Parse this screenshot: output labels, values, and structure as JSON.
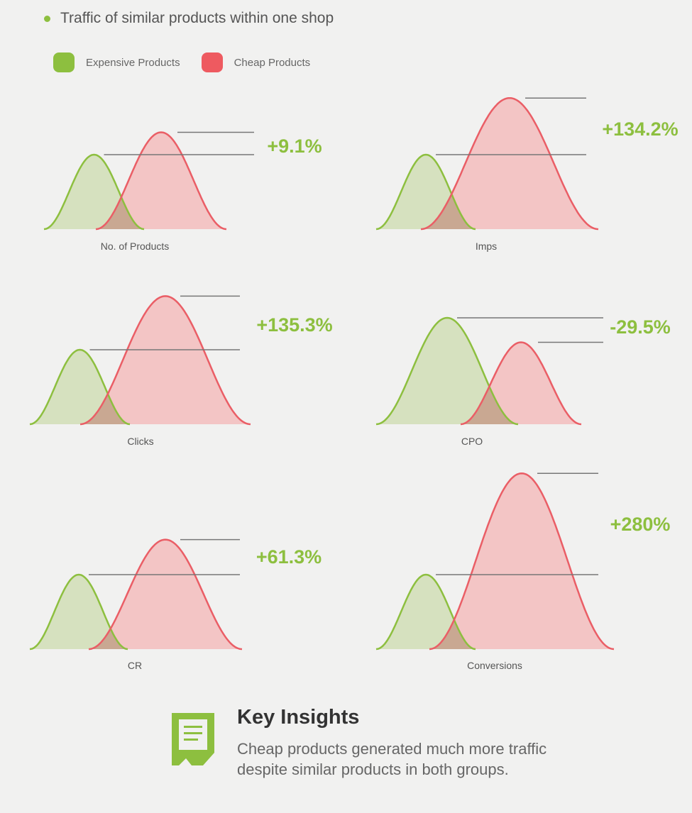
{
  "header": {
    "text": "Traffic of similar products within one shop"
  },
  "legend": [
    {
      "label": "Expensive Products",
      "color": "#8dbf3f"
    },
    {
      "label": "Cheap Products",
      "color": "#ee5a60"
    }
  ],
  "colors": {
    "green_stroke": "#8dbf3f",
    "green_fill": "#d6e1bf",
    "red_stroke": "#ea5e66",
    "red_fill": "#f3c5c5",
    "overlap_fill": "#c9a892",
    "value_text": "#8dbf3f",
    "ref_line": "#777777"
  },
  "chart_data": [
    {
      "type": "area",
      "label": "No. of Products",
      "change": "+9.1%",
      "series": [
        {
          "name": "Expensive Products",
          "peak": 1.0
        },
        {
          "name": "Cheap Products",
          "peak": 1.3
        }
      ]
    },
    {
      "type": "area",
      "label": "Imps",
      "change": "+134.2%",
      "series": [
        {
          "name": "Expensive Products",
          "peak": 1.0
        },
        {
          "name": "Cheap Products",
          "peak": 1.76
        }
      ]
    },
    {
      "type": "area",
      "label": "Clicks",
      "change": "+135.3%",
      "series": [
        {
          "name": "Expensive Products",
          "peak": 1.0
        },
        {
          "name": "Cheap Products",
          "peak": 1.72
        }
      ]
    },
    {
      "type": "area",
      "label": "CPO",
      "change": "-29.5%",
      "series": [
        {
          "name": "Expensive Products",
          "peak": 1.0
        },
        {
          "name": "Cheap Products",
          "peak": 0.77
        }
      ]
    },
    {
      "type": "area",
      "label": "CR",
      "change": "+61.3%",
      "series": [
        {
          "name": "Expensive Products",
          "peak": 1.0
        },
        {
          "name": "Cheap Products",
          "peak": 1.47
        }
      ]
    },
    {
      "type": "area",
      "label": "Conversions",
      "change": "+280%",
      "series": [
        {
          "name": "Expensive Products",
          "peak": 1.0
        },
        {
          "name": "Cheap Products",
          "peak": 2.36
        }
      ]
    }
  ],
  "insights": {
    "title": "Key Insights",
    "body": "Cheap products generated much more traffic despite similar products in both groups."
  }
}
